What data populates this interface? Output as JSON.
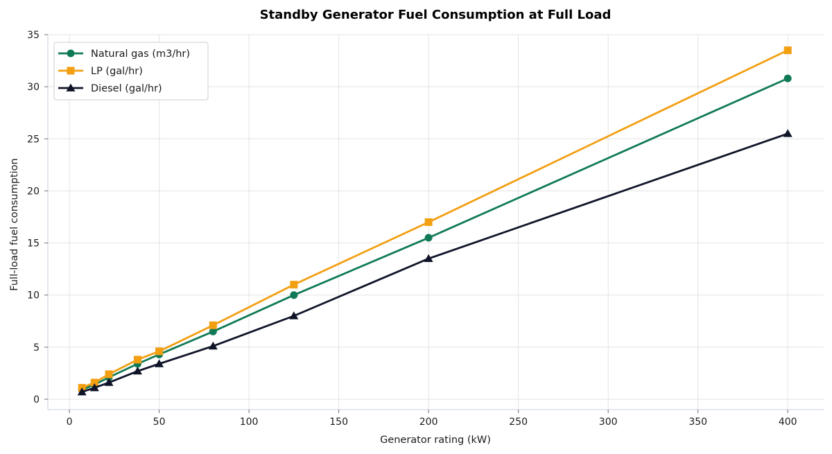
{
  "chart_data": {
    "type": "line",
    "title": "Standby Generator Fuel Consumption at Full Load",
    "xlabel": "Generator rating (kW)",
    "ylabel": "Full-load fuel consumption",
    "xlim": [
      -12,
      420
    ],
    "ylim": [
      -1,
      35
    ],
    "xticks": [
      0,
      50,
      100,
      150,
      200,
      250,
      300,
      350,
      400
    ],
    "yticks": [
      0,
      5,
      10,
      15,
      20,
      25,
      30,
      35
    ],
    "grid": true,
    "legend_position": "top-left",
    "x": [
      7,
      14,
      22,
      38,
      50,
      80,
      125,
      200,
      400
    ],
    "series": [
      {
        "name": "Natural gas (m3/hr)",
        "color": "#107a56",
        "marker": "circle",
        "values": [
          0.9,
          1.4,
          2.1,
          3.4,
          4.3,
          6.5,
          10.0,
          15.5,
          30.8
        ]
      },
      {
        "name": "LP (gal/hr)",
        "color": "#f29f12",
        "marker": "square",
        "values": [
          1.1,
          1.6,
          2.4,
          3.8,
          4.6,
          7.1,
          11.0,
          17.0,
          33.5
        ]
      },
      {
        "name": "Diesel (gal/hr)",
        "color": "#0f1428",
        "marker": "triangle",
        "values": [
          0.7,
          1.1,
          1.6,
          2.7,
          3.4,
          5.1,
          8.0,
          13.5,
          25.5
        ]
      }
    ]
  }
}
